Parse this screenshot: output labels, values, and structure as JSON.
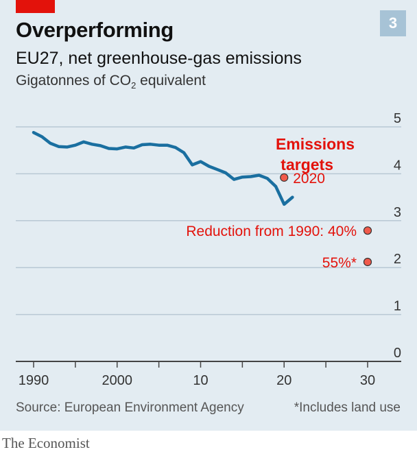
{
  "header": {
    "title": "Overperforming",
    "subtitle": "EU27, net greenhouse-gas emissions",
    "units_prefix": "Gigatonnes of CO",
    "units_sub": "2",
    "units_suffix": " equivalent",
    "chart_number": "3"
  },
  "footer": {
    "source": "Source: European Environment Agency",
    "note": "*Includes land use",
    "brand": "The Economist"
  },
  "colors": {
    "line": "#1a6fa0",
    "accent": "#e3120b",
    "target_dot": "#f15a4b",
    "grid": "#b8c8d4",
    "panel_bg": "#e3ecf2"
  },
  "chart_data": {
    "type": "line",
    "title": "Overperforming",
    "subtitle": "EU27, net greenhouse-gas emissions",
    "ylabel": "Gigatonnes of CO2 equivalent",
    "xlim": [
      1989,
      2034
    ],
    "ylim": [
      0,
      5
    ],
    "grid": true,
    "y_ticks": [
      0,
      1,
      2,
      3,
      4,
      5
    ],
    "x_ticks": [
      {
        "value": 1990,
        "label": "1990"
      },
      {
        "value": 1995,
        "label": ""
      },
      {
        "value": 2000,
        "label": "2000"
      },
      {
        "value": 2005,
        "label": ""
      },
      {
        "value": 2010,
        "label": "10"
      },
      {
        "value": 2015,
        "label": ""
      },
      {
        "value": 2020,
        "label": "20"
      },
      {
        "value": 2025,
        "label": ""
      },
      {
        "value": 2030,
        "label": "30"
      }
    ],
    "series": [
      {
        "x": [
          1990,
          1991,
          1992,
          1993,
          1994,
          1995,
          1996,
          1997,
          1998,
          1999,
          2000,
          2001,
          2002,
          2003,
          2004,
          2005,
          2006,
          2007,
          2008,
          2009,
          2010,
          2011,
          2012,
          2013,
          2014,
          2015,
          2016,
          2017,
          2018,
          2019,
          2020,
          2021
        ],
        "values": [
          4.88,
          4.79,
          4.65,
          4.58,
          4.57,
          4.61,
          4.68,
          4.63,
          4.6,
          4.54,
          4.53,
          4.57,
          4.55,
          4.62,
          4.63,
          4.61,
          4.61,
          4.56,
          4.45,
          4.19,
          4.26,
          4.16,
          4.09,
          4.02,
          3.88,
          3.93,
          3.94,
          3.97,
          3.9,
          3.73,
          3.35,
          3.5
        ]
      }
    ],
    "targets_heading": "Emissions targets",
    "targets": [
      {
        "x": 2020,
        "y": 3.92,
        "label": "2020"
      },
      {
        "x": 2030,
        "y": 2.79,
        "label": "Reduction from 1990:  40%"
      },
      {
        "x": 2030,
        "y": 2.12,
        "label": "55%*"
      }
    ]
  }
}
